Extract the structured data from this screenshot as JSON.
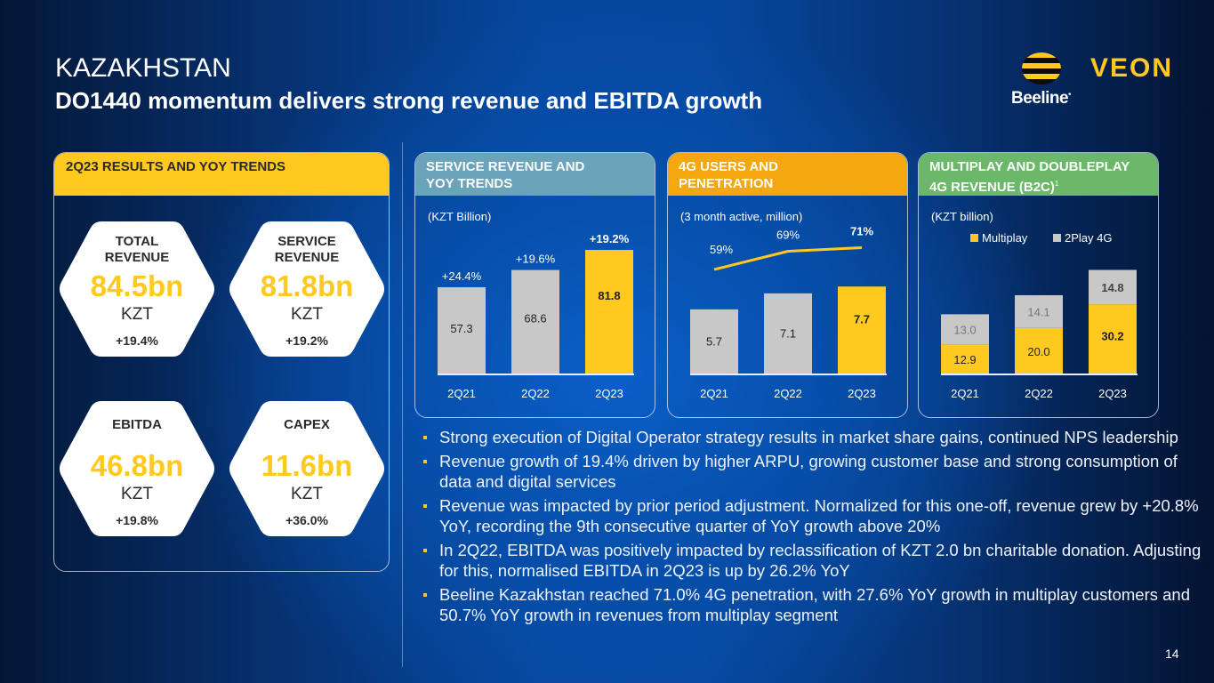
{
  "header": {
    "title": "KAZAKHSTAN",
    "subtitle": "DO1440 momentum delivers strong revenue and EBITDA growth"
  },
  "logo": {
    "brand": "Beeline",
    "brand_mark": "•",
    "company": "VEON"
  },
  "results_panel": {
    "title": "2Q23 RESULTS AND YOY TRENDS",
    "kpis": [
      {
        "label_line1": "TOTAL",
        "label_line2": "REVENUE",
        "value": "84.5bn",
        "unit": "KZT",
        "change": "+19.4%"
      },
      {
        "label_line1": "SERVICE",
        "label_line2": "REVENUE",
        "value": "81.8bn",
        "unit": "KZT",
        "change": "+19.2%"
      },
      {
        "label_line1": "EBITDA",
        "label_line2": "",
        "value": "46.8bn",
        "unit": "KZT",
        "change": "+19.8%"
      },
      {
        "label_line1": "CAPEX",
        "label_line2": "",
        "value": "11.6bn",
        "unit": "KZT",
        "change": "+36.0%"
      }
    ]
  },
  "colors": {
    "accent_yellow": "#ffc91f",
    "bar_grey": "#c8c8c8",
    "header_teal": "#6aa3ba",
    "header_orange": "#f5a70f",
    "header_green": "#6cb86a"
  },
  "chart_data": [
    {
      "type": "bar",
      "title_line1": "SERVICE REVENUE AND",
      "title_line2": "YOY TRENDS",
      "unit_label": "(KZT Billion)",
      "categories": [
        "2Q21",
        "2Q22",
        "2Q23"
      ],
      "values": [
        57.3,
        68.6,
        81.8
      ],
      "value_labels": [
        "57.3",
        "68.6",
        "81.8"
      ],
      "annotations": [
        "+24.4%",
        "+19.6%",
        "+19.2%"
      ],
      "highlight_index": 2,
      "ylim": [
        0,
        90
      ],
      "grid": false
    },
    {
      "type": "bar",
      "title_line1": "4G USERS AND",
      "title_line2": "PENETRATION",
      "unit_label": "(3 month active, million)",
      "categories": [
        "2Q21",
        "2Q22",
        "2Q23"
      ],
      "values": [
        5.7,
        7.1,
        7.7
      ],
      "value_labels": [
        "5.7",
        "7.1",
        "7.7"
      ],
      "line_series": {
        "name": "4G penetration",
        "values": [
          59,
          69,
          71
        ],
        "labels": [
          "59%",
          "69%",
          "71%"
        ]
      },
      "highlight_index": 2,
      "ylim": [
        0,
        12
      ],
      "grid": false
    },
    {
      "type": "bar",
      "stacked": true,
      "title_line1": "MULTIPLAY AND DOUBLEPLAY",
      "title_line2": "4G REVENUE (B2C)",
      "title_footnote": "1",
      "unit_label": "(KZT billion)",
      "categories": [
        "2Q21",
        "2Q22",
        "2Q23"
      ],
      "series": [
        {
          "name": "Multiplay",
          "values": [
            12.9,
            20.0,
            30.2
          ],
          "labels": [
            "12.9",
            "20.0",
            "30.2"
          ]
        },
        {
          "name": "2Play 4G",
          "values": [
            13.0,
            14.1,
            14.8
          ],
          "labels": [
            "13.0",
            "14.1",
            "14.8"
          ]
        }
      ],
      "legend": "top",
      "ylim": [
        0,
        54
      ],
      "grid": false
    }
  ],
  "bullets": [
    "Strong execution of Digital Operator strategy results in market share gains, continued NPS leadership",
    "Revenue growth of 19.4% driven by higher ARPU, growing customer base and strong consumption of data and digital services",
    "Revenue was impacted by prior period adjustment. Normalized for this one-off, revenue grew by +20.8% YoY, recording the 9th consecutive quarter of YoY growth above 20%",
    "In 2Q22, EBITDA was positively impacted by reclassification of KZT 2.0 bn charitable donation. Adjusting for this, normalised EBITDA in 2Q23 is up by 26.2% YoY",
    "Beeline Kazakhstan reached 71.0% 4G penetration, with 27.6% YoY growth in multiplay customers and 50.7% YoY growth in revenues from multiplay segment"
  ],
  "page_number": "14"
}
